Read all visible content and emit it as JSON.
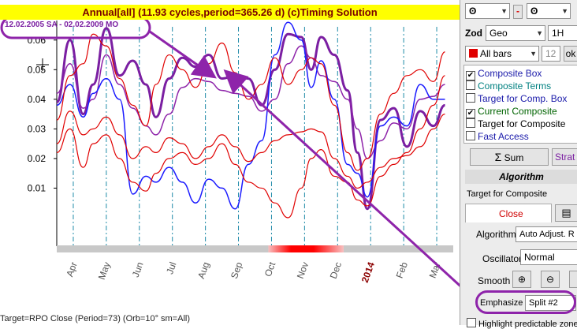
{
  "title": "Annual[all]  (11.93 cycles,period=365.26 d)   (c)Timing Solution",
  "range_label": "12.02.2005 SA - 02.02.2009 MO",
  "status": "Target=RPO Close (Period=73) (Orb=10°  sm=All)",
  "colors": {
    "title_bg": "#ffff00",
    "title_text": "#7a0000",
    "purple": "#7b1fa2",
    "blue": "#1a1aff",
    "red": "#e00000"
  },
  "chart_data": {
    "type": "line",
    "y_ticks": [
      "0.06",
      "0.05",
      "0.04",
      "0.03",
      "0.02",
      "0.01"
    ],
    "y_tick_values": [
      0.06,
      0.05,
      0.04,
      0.03,
      0.02,
      0.01
    ],
    "ylim": [
      -0.0096,
      0.0666
    ],
    "x_categories": [
      "Apr",
      "May",
      "Jun",
      "Jul",
      "Aug",
      "Sep",
      "Oct",
      "Nov",
      "Dec",
      "2014",
      "Feb",
      "Mar"
    ],
    "x_highlight": "2014",
    "xlim": [
      0,
      12
    ],
    "series": [
      {
        "role": "thick-purple",
        "color": "#7b1fa2",
        "width": 3,
        "x": [
          0,
          0.4,
          0.8,
          1.1,
          1.5,
          1.9,
          2.3,
          2.7,
          3.0,
          3.4,
          3.8,
          4.2,
          4.6,
          5.0,
          5.4,
          5.8,
          6.2,
          6.6,
          7.0,
          7.4,
          7.7,
          8.0,
          8.4,
          8.8,
          9.1,
          9.4,
          9.8,
          10.2,
          10.6,
          11.0,
          11.4,
          11.75
        ],
        "y": [
          0.039,
          0.06,
          0.035,
          0.045,
          0.064,
          0.048,
          0.053,
          0.045,
          0.034,
          0.047,
          0.054,
          0.051,
          0.055,
          0.047,
          0.048,
          0.047,
          0.038,
          0.05,
          0.062,
          0.061,
          0.05,
          0.061,
          0.055,
          0.043,
          0.022,
          0.003,
          0.033,
          0.037,
          0.024,
          0.036,
          0.031,
          0.038
        ]
      },
      {
        "role": "thin-purple",
        "color": "#8e24aa",
        "width": 1.5,
        "x": [
          0,
          0.4,
          0.8,
          1.1,
          1.5,
          1.9,
          2.3,
          2.7,
          3.0,
          3.4,
          3.8,
          4.2,
          4.6,
          5.0,
          5.4,
          5.8,
          6.2,
          6.6,
          7.0,
          7.4,
          7.7,
          8.0,
          8.4,
          8.8,
          9.1,
          9.4,
          9.8,
          10.2,
          10.6,
          11.0,
          11.4,
          11.75
        ],
        "y": [
          0.042,
          0.052,
          0.037,
          0.04,
          0.055,
          0.045,
          0.037,
          0.031,
          0.028,
          0.035,
          0.044,
          0.047,
          0.046,
          0.043,
          0.042,
          0.041,
          0.036,
          0.04,
          0.052,
          0.058,
          0.054,
          0.048,
          0.046,
          0.04,
          0.03,
          0.02,
          0.026,
          0.032,
          0.03,
          0.04,
          0.041,
          0.045
        ]
      },
      {
        "role": "blue",
        "color": "#1a1aff",
        "width": 1.5,
        "x": [
          0,
          0.4,
          0.8,
          1.1,
          1.5,
          1.9,
          2.3,
          2.7,
          3.0,
          3.4,
          3.8,
          4.2,
          4.6,
          5.0,
          5.4,
          5.8,
          6.2,
          6.6,
          7.0,
          7.4,
          7.7,
          8.0,
          8.4,
          8.8,
          9.1,
          9.4,
          9.8,
          10.2,
          10.6,
          11.0,
          11.4,
          11.75
        ],
        "y": [
          0.038,
          0.045,
          0.034,
          0.042,
          0.047,
          0.04,
          0.008,
          0.014,
          0.012,
          0.017,
          0.012,
          0.005,
          0.013,
          0.01,
          0.003,
          0.018,
          0.026,
          0.055,
          0.066,
          0.06,
          0.044,
          0.053,
          0.04,
          0.018,
          0.015,
          0.007,
          0.031,
          0.034,
          0.031,
          0.045,
          0.04,
          0.04
        ]
      },
      {
        "role": "red-1",
        "color": "#e00000",
        "width": 1.2,
        "x": [
          0,
          0.4,
          0.8,
          1.1,
          1.5,
          1.9,
          2.3,
          2.7,
          3.0,
          3.4,
          3.8,
          4.2,
          4.6,
          5.0,
          5.4,
          5.8,
          6.2,
          6.6,
          7.0,
          7.4,
          7.7,
          8.0,
          8.4,
          8.8,
          9.1,
          9.4,
          9.8,
          10.2,
          10.6,
          11.0,
          11.4,
          11.75
        ],
        "y": [
          0.033,
          0.048,
          0.052,
          0.062,
          0.058,
          0.047,
          0.038,
          0.031,
          0.045,
          0.055,
          0.05,
          0.044,
          0.052,
          0.059,
          0.049,
          0.04,
          0.045,
          0.054,
          0.045,
          0.05,
          0.054,
          0.052,
          0.038,
          0.022,
          0.016,
          0.02,
          0.035,
          0.042,
          0.048,
          0.05,
          0.046,
          0.056
        ]
      },
      {
        "role": "red-2",
        "color": "#e00000",
        "width": 1.2,
        "x": [
          0,
          0.4,
          0.8,
          1.1,
          1.5,
          1.9,
          2.3,
          2.7,
          3.0,
          3.4,
          3.8,
          4.2,
          4.6,
          5.0,
          5.4,
          5.8,
          6.2,
          6.6,
          7.0,
          7.4,
          7.7,
          8.0,
          8.4,
          8.8,
          9.1,
          9.4,
          9.8,
          10.2,
          10.6,
          11.0,
          11.4,
          11.75
        ],
        "y": [
          0.025,
          0.036,
          0.028,
          0.03,
          0.034,
          0.028,
          0.02,
          0.024,
          0.022,
          0.027,
          0.025,
          0.02,
          0.024,
          0.028,
          0.024,
          0.019,
          0.022,
          0.026,
          0.028,
          0.029,
          0.03,
          0.029,
          0.02,
          0.014,
          0.01,
          0.012,
          0.017,
          0.02,
          0.021,
          0.024,
          0.03,
          0.035
        ]
      },
      {
        "role": "red-3",
        "color": "#e00000",
        "width": 1.2,
        "x": [
          0,
          0.4,
          0.8,
          1.1,
          1.5,
          1.9,
          2.3,
          2.7,
          3.0,
          3.4,
          3.8,
          4.2,
          4.6,
          5.0,
          5.4,
          5.8,
          6.2,
          6.6,
          7.0,
          7.4,
          7.7,
          8.0,
          8.4,
          8.8,
          9.1,
          9.4,
          9.8,
          10.2,
          10.6,
          11.0,
          11.4,
          11.75
        ],
        "y": [
          0.022,
          0.03,
          0.017,
          0.025,
          0.028,
          0.02,
          0.012,
          0.009,
          0.015,
          0.02,
          0.022,
          0.018,
          0.02,
          0.025,
          0.018,
          0.012,
          0.01,
          0.005,
          0.0,
          0.01,
          0.02,
          0.023,
          0.014,
          0.012,
          0.006,
          0.004,
          0.014,
          0.018,
          0.022,
          0.03,
          0.038,
          0.048
        ]
      }
    ]
  },
  "panel": {
    "combo1": "ʘ",
    "combo2": "ʘ",
    "minus": "-",
    "zod_label": "Zod",
    "zod_value": "Geo",
    "timeframe": "1H",
    "bars_value": "All bars",
    "bars_count": "12",
    "ok_label": "ok",
    "checkboxes": [
      {
        "label": "Composite Box",
        "checked": true,
        "color": "#1a1aaa"
      },
      {
        "label": "Composite Terms",
        "checked": false,
        "color": "#008080"
      },
      {
        "label": "Target for Comp. Box",
        "checked": false,
        "color": "#1a1aaa"
      },
      {
        "label": "Current Composite",
        "checked": true,
        "color": "#006400"
      },
      {
        "label": "Target for Composite",
        "checked": false,
        "color": "#000000"
      },
      {
        "label": "Fast Access",
        "checked": false,
        "color": "#1a1aaa"
      }
    ],
    "sum_label": "Sum",
    "strat_label": "Strat",
    "algorithm_header": "Algorithm",
    "target_label": "Target for Composite",
    "close_label": "Close",
    "algorithm_label": "Algorithm",
    "algorithm_value": "Auto Adjust. R",
    "oscillator_label": "Oscillator",
    "oscillator_value": "Normal",
    "smooth_label": "Smooth",
    "emphasize_label": "Emphasize",
    "emphasize_value": "Split #2",
    "highlight_label": "Highlight predictable zones"
  }
}
